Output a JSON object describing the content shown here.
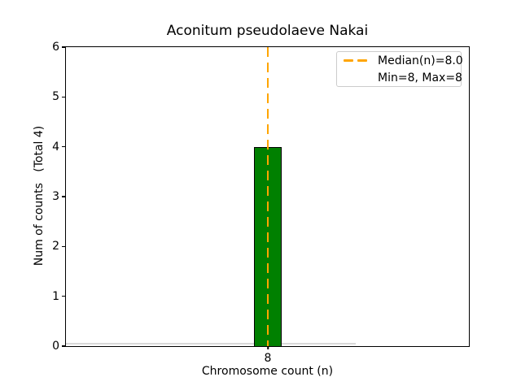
{
  "title": "Aconitum pseudolaeve Nakai",
  "chart_data": {
    "type": "bar",
    "title": "Aconitum pseudolaeve Nakai",
    "xlabel": "Chromosome count (n)",
    "ylabel": "Num of counts   (Total 4)",
    "categories": [
      "8"
    ],
    "values": [
      4
    ],
    "total_counts": 4,
    "ylim": [
      0,
      6
    ],
    "yticks": [
      0,
      1,
      2,
      3,
      4,
      5,
      6
    ],
    "xticks": [
      "8"
    ],
    "grid": false,
    "bar_color": "#008000",
    "bar_edge_color": "#000000",
    "median_line": {
      "x": 8.0,
      "color": "#FFA500",
      "style": "dashed"
    },
    "stats": {
      "median": 8.0,
      "min": 8,
      "max": 8
    },
    "legend": {
      "position": "upper right",
      "entries": [
        {
          "label": "Median(n)=8.0",
          "marker": "orange-dashed-line",
          "color": "#FFA500"
        },
        {
          "label": "Min=8, Max=8",
          "marker": "none"
        }
      ]
    }
  }
}
